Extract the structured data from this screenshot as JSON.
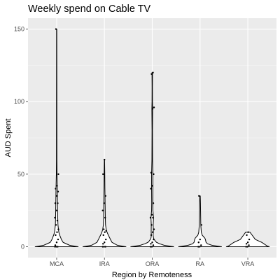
{
  "chart_data": {
    "type": "violin",
    "title": "Weekly spend on Cable TV",
    "xlabel": "Region by Remoteness",
    "ylabel": "AUD Spent",
    "categories": [
      "MCA",
      "IRA",
      "ORA",
      "RA",
      "VRA"
    ],
    "ylim": [
      -7.5,
      157.5
    ],
    "y_ticks": [
      0,
      50,
      100,
      150
    ],
    "grid": true,
    "background": "#ebebeb",
    "series": [
      {
        "category": "MCA",
        "density": [
          [
            0,
            1.0
          ],
          [
            1,
            0.6
          ],
          [
            3,
            0.3
          ],
          [
            5,
            0.22
          ],
          [
            8,
            0.14
          ],
          [
            10,
            0.1
          ],
          [
            15,
            0.06
          ],
          [
            20,
            0.05
          ],
          [
            30,
            0.04
          ],
          [
            40,
            0.03
          ],
          [
            50,
            0.015
          ],
          [
            60,
            0.01
          ],
          [
            100,
            0.008
          ],
          [
            150,
            0.005
          ]
        ],
        "points": [
          0,
          0,
          0,
          1,
          3,
          5,
          8,
          10,
          12,
          15,
          18,
          20,
          25,
          30,
          30,
          35,
          38,
          40,
          42,
          50,
          150
        ]
      },
      {
        "category": "IRA",
        "density": [
          [
            0,
            1.0
          ],
          [
            1,
            0.6
          ],
          [
            3,
            0.35
          ],
          [
            5,
            0.28
          ],
          [
            8,
            0.18
          ],
          [
            10,
            0.12
          ],
          [
            12,
            0.08
          ],
          [
            15,
            0.05
          ],
          [
            20,
            0.04
          ],
          [
            30,
            0.03
          ],
          [
            40,
            0.02
          ],
          [
            50,
            0.015
          ],
          [
            60,
            0.006
          ]
        ],
        "points": [
          0,
          0,
          0,
          2,
          3,
          5,
          8,
          10,
          11,
          12,
          20,
          25,
          30,
          35,
          50,
          60
        ]
      },
      {
        "category": "ORA",
        "density": [
          [
            0,
            1.0
          ],
          [
            1,
            0.55
          ],
          [
            2,
            0.35
          ],
          [
            3,
            0.2
          ],
          [
            4,
            0.14
          ],
          [
            5,
            0.09
          ],
          [
            6,
            0.06
          ],
          [
            8,
            0.04
          ],
          [
            10,
            0.05
          ],
          [
            15,
            0.045
          ],
          [
            20,
            0.06
          ],
          [
            25,
            0.03
          ],
          [
            30,
            0.025
          ],
          [
            40,
            0.03
          ],
          [
            50,
            0.03
          ],
          [
            60,
            0.015
          ],
          [
            80,
            0.01
          ],
          [
            95,
            0.018
          ],
          [
            100,
            0.01
          ],
          [
            110,
            0.008
          ],
          [
            120,
            0.012
          ]
        ],
        "points": [
          0,
          0,
          1,
          2,
          3,
          5,
          8,
          10,
          12,
          15,
          20,
          20,
          22,
          30,
          40,
          42,
          50,
          51,
          95,
          96,
          119,
          120
        ]
      },
      {
        "category": "RA",
        "density": [
          [
            0,
            1.0
          ],
          [
            1,
            0.55
          ],
          [
            2,
            0.35
          ],
          [
            3,
            0.28
          ],
          [
            5,
            0.25
          ],
          [
            6,
            0.22
          ],
          [
            8,
            0.1
          ],
          [
            10,
            0.06
          ],
          [
            15,
            0.035
          ],
          [
            20,
            0.03
          ],
          [
            25,
            0.025
          ],
          [
            30,
            0.02
          ],
          [
            35,
            0.01
          ]
        ],
        "points": [
          0,
          0,
          1,
          3,
          5,
          15,
          35
        ]
      },
      {
        "category": "VRA",
        "density": [
          [
            0,
            1.0
          ],
          [
            0.5,
            0.9
          ],
          [
            1,
            0.85
          ],
          [
            2,
            0.75
          ],
          [
            3,
            0.65
          ],
          [
            4,
            0.5
          ],
          [
            5,
            0.35
          ],
          [
            6,
            0.3
          ],
          [
            7,
            0.25
          ],
          [
            8,
            0.2
          ],
          [
            9,
            0.15
          ],
          [
            10,
            0.1
          ]
        ],
        "points": [
          0,
          0,
          1,
          2,
          3,
          5,
          8,
          10
        ]
      }
    ]
  }
}
